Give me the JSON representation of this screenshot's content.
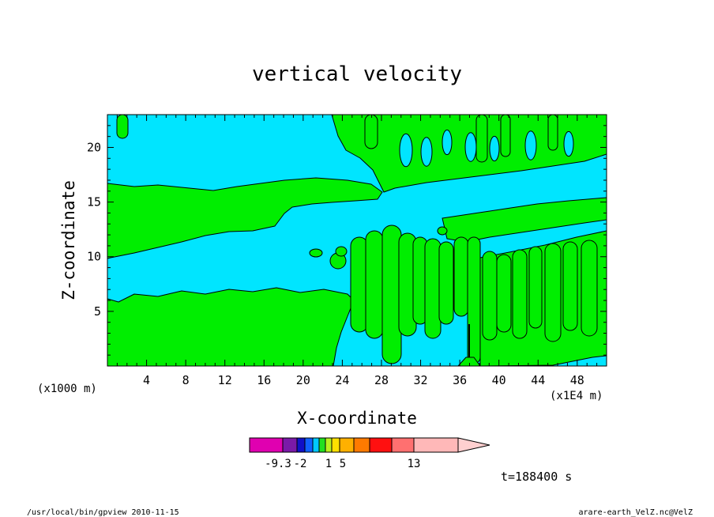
{
  "chart_data": {
    "type": "heatmap",
    "title": "vertical velocity",
    "xlabel": "X-coordinate",
    "ylabel": "Z-coordinate",
    "x_unit_left": "(x1000 m)",
    "x_unit_right": "(x1E4 m)",
    "xlim": [
      0,
      51
    ],
    "ylim": [
      0,
      23
    ],
    "x_ticks": [
      {
        "value": 4,
        "label": "4"
      },
      {
        "value": 8,
        "label": "8"
      },
      {
        "value": 12,
        "label": "12"
      },
      {
        "value": 16,
        "label": "16"
      },
      {
        "value": 20,
        "label": "20"
      },
      {
        "value": 24,
        "label": "24"
      },
      {
        "value": 28,
        "label": "28"
      },
      {
        "value": 32,
        "label": "32"
      },
      {
        "value": 36,
        "label": "36"
      },
      {
        "value": 40,
        "label": "40"
      },
      {
        "value": 44,
        "label": "44"
      },
      {
        "value": 48,
        "label": "48"
      }
    ],
    "y_ticks": [
      {
        "value": 5,
        "label": "5"
      },
      {
        "value": 10,
        "label": "10"
      },
      {
        "value": 15,
        "label": "15"
      },
      {
        "value": 20,
        "label": "20"
      }
    ],
    "field_colors": {
      "background": "#00e5ff",
      "positive_region": "#00ee00",
      "contour_line": "#000000"
    },
    "colorbar": {
      "colors": [
        "#e000b0",
        "#7a1aa8",
        "#1010c8",
        "#1060ff",
        "#00c8ff",
        "#20e020",
        "#b8f020",
        "#ffe000",
        "#ffb000",
        "#ff7a00",
        "#ff1010",
        "#ff7070",
        "#ffb8b8",
        "#ffd0d0"
      ],
      "labels": [
        "-9.3",
        "-2",
        "1",
        "5",
        "13"
      ]
    },
    "time_label": "t=188400 s"
  },
  "footer": {
    "left": "/usr/local/bin/gpview   2010-11-15",
    "right": "arare-earth_VelZ.nc@VelZ"
  }
}
